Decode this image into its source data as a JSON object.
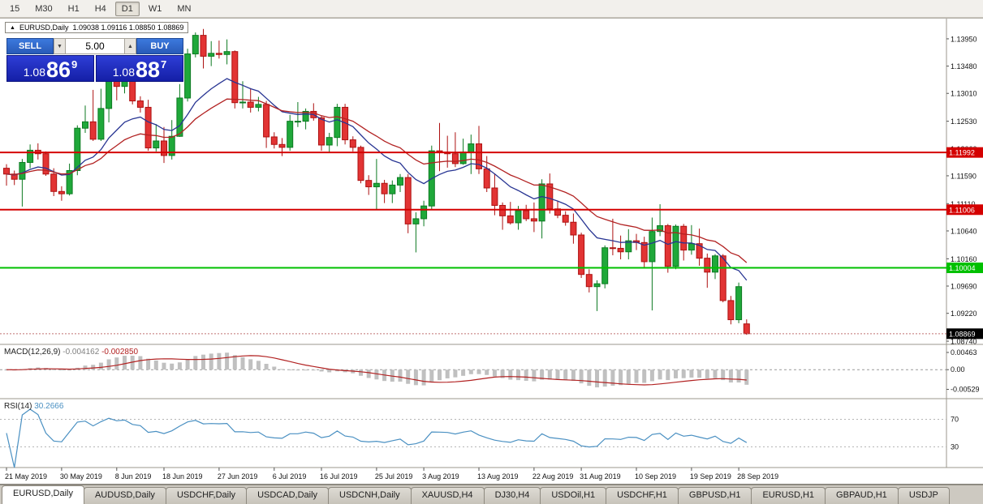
{
  "toolbar": {
    "timeframes": [
      {
        "label": "15",
        "active": false
      },
      {
        "label": "M30",
        "active": false
      },
      {
        "label": "H1",
        "active": false
      },
      {
        "label": "H4",
        "active": false
      },
      {
        "label": "D1",
        "active": true
      },
      {
        "label": "W1",
        "active": false
      },
      {
        "label": "MN",
        "active": false
      }
    ]
  },
  "chart_header": {
    "collapse_icon": "▲",
    "symbol": "EURUSD,Daily",
    "ohlc": "1.09038 1.09116 1.08850 1.08869"
  },
  "trade_panel": {
    "sell_label": "SELL",
    "buy_label": "BUY",
    "volume": "5.00",
    "volume_down_icon": "▼",
    "volume_up_icon": "▲",
    "sell_price": {
      "prefix": "1.08",
      "big": "86",
      "sup": "9"
    },
    "buy_price": {
      "prefix": "1.08",
      "big": "88",
      "sup": "7"
    }
  },
  "chart_data": {
    "type": "candlestick",
    "symbol": "EURUSD",
    "timeframe": "Daily",
    "y_range": [
      1.08685,
      1.1427
    ],
    "y_ticks": [
      1.1395,
      1.1348,
      1.1301,
      1.1253,
      1.1206,
      1.1159,
      1.1111,
      1.1064,
      1.1016,
      1.0969,
      1.0922,
      1.0874
    ],
    "levels": [
      {
        "price": 1.11992,
        "label": "1.11992",
        "color": "#d40000",
        "type": "resistance"
      },
      {
        "price": 1.11006,
        "label": "1.11006",
        "color": "#d40000",
        "type": "resistance"
      },
      {
        "price": 1.10004,
        "label": "1.10004",
        "color": "#00c000",
        "type": "support"
      }
    ],
    "current_price": {
      "value": 1.08869,
      "label": "1.08869"
    },
    "colors": {
      "up": "#1fa83a",
      "up_border": "#0d7a22",
      "down": "#e23434",
      "down_border": "#ad1111",
      "ma_fast": "#283593",
      "ma_slow": "#b22222",
      "macd_hist": "#c0c0c0",
      "macd_signal": "#b22222",
      "rsi": "#4a90c2"
    },
    "ma": {
      "fast_period": 12,
      "slow_period": 22
    },
    "x_labels": [
      {
        "i": 0,
        "text": "21 May 2019"
      },
      {
        "i": 7,
        "text": "30 May 2019"
      },
      {
        "i": 14,
        "text": "8 Jun 2019"
      },
      {
        "i": 20,
        "text": "18 Jun 2019"
      },
      {
        "i": 27,
        "text": "27 Jun 2019"
      },
      {
        "i": 34,
        "text": "6 Jul 2019"
      },
      {
        "i": 40,
        "text": "16 Jul 2019"
      },
      {
        "i": 47,
        "text": "25 Jul 2019"
      },
      {
        "i": 53,
        "text": "3 Aug 2019"
      },
      {
        "i": 60,
        "text": "13 Aug 2019"
      },
      {
        "i": 67,
        "text": "22 Aug 2019"
      },
      {
        "i": 73,
        "text": "31 Aug 2019"
      },
      {
        "i": 80,
        "text": "10 Sep 2019"
      },
      {
        "i": 87,
        "text": "19 Sep 2019"
      },
      {
        "i": 93,
        "text": "28 Sep 2019"
      }
    ],
    "candles": [
      [
        1.1172,
        1.1179,
        1.1142,
        1.1162
      ],
      [
        1.1162,
        1.1168,
        1.1143,
        1.1153
      ],
      [
        1.1153,
        1.1188,
        1.1106,
        1.1182
      ],
      [
        1.1182,
        1.1213,
        1.1172,
        1.1203
      ],
      [
        1.1203,
        1.1215,
        1.1187,
        1.1197
      ],
      [
        1.1197,
        1.1201,
        1.1159,
        1.1162
      ],
      [
        1.1162,
        1.1172,
        1.1124,
        1.1132
      ],
      [
        1.1132,
        1.1141,
        1.1116,
        1.1128
      ],
      [
        1.1128,
        1.118,
        1.1125,
        1.1168
      ],
      [
        1.1168,
        1.1246,
        1.116,
        1.1241
      ],
      [
        1.1241,
        1.128,
        1.1233,
        1.1252
      ],
      [
        1.1252,
        1.1307,
        1.1219,
        1.1222
      ],
      [
        1.1222,
        1.1309,
        1.1219,
        1.1275
      ],
      [
        1.1275,
        1.1348,
        1.1251,
        1.1334
      ],
      [
        1.1334,
        1.1334,
        1.1289,
        1.1313
      ],
      [
        1.1313,
        1.1338,
        1.1301,
        1.1326
      ],
      [
        1.1326,
        1.1344,
        1.1282,
        1.1288
      ],
      [
        1.1288,
        1.1296,
        1.1268,
        1.1277
      ],
      [
        1.1277,
        1.129,
        1.1202,
        1.1207
      ],
      [
        1.1207,
        1.1248,
        1.1201,
        1.1219
      ],
      [
        1.1219,
        1.1243,
        1.1181,
        1.1194
      ],
      [
        1.1194,
        1.1255,
        1.1187,
        1.1227
      ],
      [
        1.1227,
        1.1317,
        1.1226,
        1.1293
      ],
      [
        1.1293,
        1.1378,
        1.1287,
        1.1369
      ],
      [
        1.1369,
        1.1406,
        1.1363,
        1.1401
      ],
      [
        1.1401,
        1.1412,
        1.1344,
        1.1365
      ],
      [
        1.1365,
        1.1391,
        1.1348,
        1.137
      ],
      [
        1.137,
        1.1392,
        1.1361,
        1.1368
      ],
      [
        1.1368,
        1.1394,
        1.1351,
        1.1373
      ],
      [
        1.1373,
        1.1375,
        1.1275,
        1.1285
      ],
      [
        1.1285,
        1.1322,
        1.1275,
        1.1286
      ],
      [
        1.1286,
        1.131,
        1.1268,
        1.1277
      ],
      [
        1.1277,
        1.1295,
        1.127,
        1.1282
      ],
      [
        1.1282,
        1.1288,
        1.1207,
        1.1226
      ],
      [
        1.1226,
        1.1234,
        1.1206,
        1.1213
      ],
      [
        1.1213,
        1.1224,
        1.1193,
        1.1208
      ],
      [
        1.1208,
        1.1264,
        1.1202,
        1.1253
      ],
      [
        1.1253,
        1.1286,
        1.1243,
        1.1253
      ],
      [
        1.1253,
        1.1275,
        1.1239,
        1.127
      ],
      [
        1.127,
        1.1284,
        1.1254,
        1.1259
      ],
      [
        1.1259,
        1.1263,
        1.1202,
        1.1212
      ],
      [
        1.1212,
        1.1233,
        1.1199,
        1.1225
      ],
      [
        1.1225,
        1.1283,
        1.121,
        1.1277
      ],
      [
        1.1277,
        1.1283,
        1.1213,
        1.1221
      ],
      [
        1.1221,
        1.1227,
        1.1201,
        1.1208
      ],
      [
        1.1208,
        1.1211,
        1.1146,
        1.1151
      ],
      [
        1.1151,
        1.116,
        1.1126,
        1.114
      ],
      [
        1.114,
        1.1188,
        1.1101,
        1.1146
      ],
      [
        1.1146,
        1.1152,
        1.1112,
        1.1128
      ],
      [
        1.1128,
        1.1151,
        1.1112,
        1.1143
      ],
      [
        1.1143,
        1.1162,
        1.1131,
        1.1156
      ],
      [
        1.1156,
        1.1162,
        1.106,
        1.1076
      ],
      [
        1.1076,
        1.1096,
        1.1027,
        1.1085
      ],
      [
        1.1085,
        1.1116,
        1.1072,
        1.1107
      ],
      [
        1.1107,
        1.1211,
        1.1101,
        1.1202
      ],
      [
        1.1202,
        1.125,
        1.1167,
        1.12
      ],
      [
        1.12,
        1.1228,
        1.1173,
        1.1197
      ],
      [
        1.1197,
        1.1234,
        1.1174,
        1.118
      ],
      [
        1.118,
        1.1223,
        1.1178,
        1.12
      ],
      [
        1.12,
        1.123,
        1.1162,
        1.1214
      ],
      [
        1.1214,
        1.1245,
        1.1162,
        1.1171
      ],
      [
        1.1171,
        1.1193,
        1.1131,
        1.1138
      ],
      [
        1.1138,
        1.1163,
        1.1091,
        1.1108
      ],
      [
        1.1108,
        1.1113,
        1.1066,
        1.109
      ],
      [
        1.109,
        1.1114,
        1.1075,
        1.1078
      ],
      [
        1.1078,
        1.1107,
        1.1066,
        1.1099
      ],
      [
        1.1099,
        1.1109,
        1.1081,
        1.1085
      ],
      [
        1.1085,
        1.1113,
        1.1062,
        1.1081
      ],
      [
        1.1081,
        1.1153,
        1.1051,
        1.1145
      ],
      [
        1.1145,
        1.1163,
        1.1094,
        1.1102
      ],
      [
        1.1102,
        1.1116,
        1.1086,
        1.1091
      ],
      [
        1.1091,
        1.1098,
        1.1073,
        1.1079
      ],
      [
        1.1079,
        1.1094,
        1.1042,
        1.1057
      ],
      [
        1.1057,
        1.1061,
        1.0983,
        1.0989
      ],
      [
        1.0989,
        1.0998,
        1.0958,
        1.0968
      ],
      [
        1.0968,
        1.0979,
        1.0926,
        1.0973
      ],
      [
        1.0973,
        1.1039,
        1.0965,
        1.1035
      ],
      [
        1.1035,
        1.1085,
        1.1022,
        1.1034
      ],
      [
        1.1034,
        1.1056,
        1.1015,
        1.1028
      ],
      [
        1.1028,
        1.1067,
        1.1015,
        1.1047
      ],
      [
        1.1047,
        1.1059,
        1.1031,
        1.1044
      ],
      [
        1.1044,
        1.1054,
        1.0999,
        1.1011
      ],
      [
        1.1011,
        1.1087,
        1.0927,
        1.1063
      ],
      [
        1.1063,
        1.111,
        1.1055,
        1.1073
      ],
      [
        1.1073,
        1.1076,
        1.0992,
        1.1003
      ],
      [
        1.1003,
        1.1075,
        1.0998,
        1.1072
      ],
      [
        1.1072,
        1.1076,
        1.1013,
        1.1031
      ],
      [
        1.1031,
        1.1074,
        1.1023,
        1.1042
      ],
      [
        1.1042,
        1.1068,
        1.1004,
        1.1017
      ],
      [
        1.1017,
        1.1025,
        1.0966,
        1.0993
      ],
      [
        1.0993,
        1.1024,
        1.0981,
        1.1021
      ],
      [
        1.1021,
        1.1024,
        1.0941,
        1.0944
      ],
      [
        1.0944,
        1.0952,
        1.0903,
        1.0911
      ],
      [
        1.0911,
        1.0975,
        1.0905,
        1.0968
      ],
      [
        1.09038,
        1.09116,
        1.0885,
        1.08869
      ]
    ],
    "indicators": {
      "macd": {
        "name": "MACD(12,26,9)",
        "fast": 12,
        "slow": 26,
        "signal": 9,
        "value_main": "-0.004162",
        "value_signal": "-0.002850",
        "y_range": [
          -0.0078,
          0.0068
        ],
        "axis_labels": [
          {
            "value": 0.00463,
            "label": "0.00463"
          },
          {
            "value": 0,
            "label": "0.00"
          },
          {
            "value": -0.00529,
            "label": "-0.00529"
          }
        ]
      },
      "rsi": {
        "name": "RSI(14)",
        "period": 14,
        "value": "30.2666",
        "y_range": [
          0,
          100
        ],
        "levels": [
          {
            "value": 70,
            "label": "70"
          },
          {
            "value": 30,
            "label": "30"
          }
        ]
      }
    }
  },
  "tabs": {
    "items": [
      {
        "label": "EURUSD,Daily",
        "active": true
      },
      {
        "label": "AUDUSD,Daily",
        "active": false
      },
      {
        "label": "USDCHF,Daily",
        "active": false
      },
      {
        "label": "USDCAD,Daily",
        "active": false
      },
      {
        "label": "USDCNH,Daily",
        "active": false
      },
      {
        "label": "XAUUSD,H4",
        "active": false
      },
      {
        "label": "DJ30,H4",
        "active": false
      },
      {
        "label": "USDOil,H1",
        "active": false
      },
      {
        "label": "USDCHF,H1",
        "active": false
      },
      {
        "label": "GBPUSD,H1",
        "active": false
      },
      {
        "label": "EURUSD,H1",
        "active": false
      },
      {
        "label": "GBPAUD,H1",
        "active": false
      },
      {
        "label": "USDJP",
        "active": false
      }
    ]
  }
}
